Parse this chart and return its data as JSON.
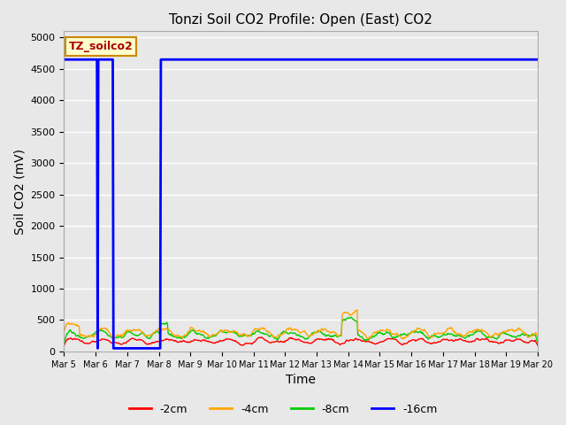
{
  "title": "Tonzi Soil CO2 Profile: Open (East) CO2",
  "ylabel": "Soil CO2 (mV)",
  "xlabel": "Time",
  "watermark_text": "TZ_soilco2",
  "ylim": [
    0,
    5100
  ],
  "yticks": [
    0,
    500,
    1000,
    1500,
    2000,
    2500,
    3000,
    3500,
    4000,
    4500,
    5000
  ],
  "date_labels": [
    "Mar 5",
    "Mar 6",
    "Mar 7",
    "Mar 8",
    "Mar 9",
    "Mar 10",
    "Mar 11",
    "Mar 12",
    "Mar 13",
    "Mar 14",
    "Mar 15",
    "Mar 16",
    "Mar 17",
    "Mar 18",
    "Mar 19",
    "Mar 20"
  ],
  "colors": {
    "neg2cm": "#ff0000",
    "neg4cm": "#ffa500",
    "neg8cm": "#00cc00",
    "neg16cm": "#0000ff"
  },
  "legend_labels": [
    "-2cm",
    "-4cm",
    "-8cm",
    "-16cm"
  ],
  "fig_facecolor": "#e8e8e8",
  "plot_facecolor": "#e8e8e8",
  "grid_color": "#ffffff",
  "title_fontsize": 11,
  "label_fontsize": 10,
  "tick_fontsize": 8,
  "neg16_flat_value": 4650,
  "neg16_drop_value": 50,
  "neg16_drop1_day": 1.08,
  "neg16_rise1_day": 1.12,
  "neg16_drop2_day": 1.5,
  "neg16_rise2_day": 3.08,
  "n_days": 15,
  "pts_per_day": 48
}
